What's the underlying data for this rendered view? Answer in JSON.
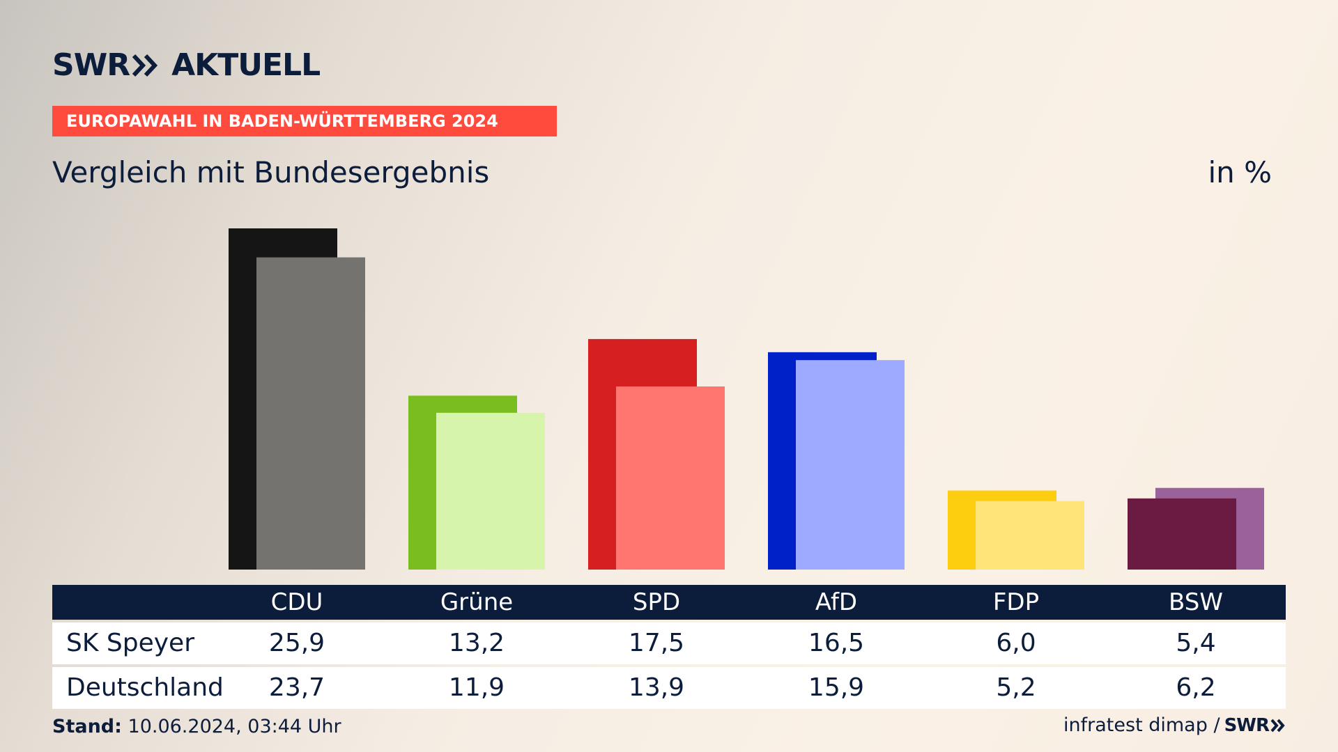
{
  "logo": {
    "brand": "SWR",
    "product": "AKTUELL"
  },
  "topic": "EUROPAWAHL IN BADEN-WÜRTTEMBERG 2024",
  "subtitle": "Vergleich mit Bundesergebnis",
  "unit": "in %",
  "chart_data": {
    "type": "bar",
    "categories": [
      "CDU",
      "Grüne",
      "SPD",
      "AfD",
      "FDP",
      "BSW"
    ],
    "series": [
      {
        "name": "SK Speyer",
        "values": [
          25.9,
          13.2,
          17.5,
          16.5,
          6.0,
          5.4
        ]
      },
      {
        "name": "Deutschland",
        "values": [
          23.7,
          11.9,
          13.9,
          15.9,
          5.2,
          6.2
        ]
      }
    ],
    "value_labels": {
      "SK Speyer": [
        "25,9",
        "13,2",
        "17,5",
        "16,5",
        "6,0",
        "5,4"
      ],
      "Deutschland": [
        "23,7",
        "11,9",
        "13,9",
        "15,9",
        "5,2",
        "6,2"
      ]
    },
    "colors_primary": [
      "#151515",
      "#79bd1f",
      "#d61f20",
      "#0021c8",
      "#fdcd0f",
      "#6b1a41"
    ],
    "colors_secondary": [
      "#747370",
      "#d7f5aa",
      "#ff7670",
      "#9eaaff",
      "#ffe477",
      "#9b619a"
    ],
    "ylim": [
      0,
      25.9
    ],
    "grid": false,
    "legend": "table-below"
  },
  "footer": {
    "stand_label": "Stand:",
    "stand_value": "10.06.2024, 03:44 Uhr",
    "source": "infratest dimap /",
    "brand": "SWR"
  }
}
